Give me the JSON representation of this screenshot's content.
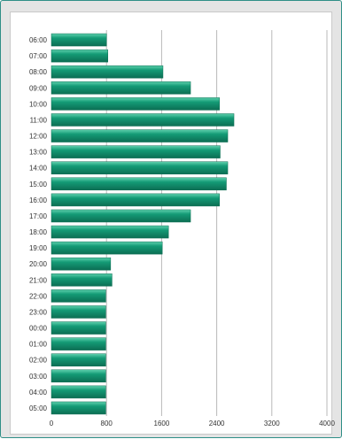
{
  "colors": {
    "bar_fill": "#149b76",
    "bar_highlight": "#5fd1ae",
    "bar_shadow": "#0c6e53",
    "grid": "#b9b9b9",
    "panel_background": "#e4e4e4",
    "frame_border": "#2f8f87"
  },
  "chart_data": {
    "type": "bar",
    "orientation": "horizontal",
    "title": "",
    "xlabel": "",
    "ylabel": "",
    "categories": [
      "06:00",
      "07:00",
      "08:00",
      "09:00",
      "10:00",
      "11:00",
      "12:00",
      "13:00",
      "14:00",
      "15:00",
      "16:00",
      "17:00",
      "18:00",
      "19:00",
      "20:00",
      "21:00",
      "22:00",
      "23:00",
      "00:00",
      "01:00",
      "02:00",
      "03:00",
      "04:00",
      "05:00"
    ],
    "values": [
      800,
      820,
      1620,
      2020,
      2440,
      2650,
      2560,
      2450,
      2560,
      2540,
      2440,
      2020,
      1700,
      1610,
      860,
      880,
      790,
      790,
      790,
      790,
      790,
      790,
      790,
      790
    ],
    "xlim": [
      0,
      4000
    ],
    "xticks": [
      "0",
      "800",
      "1600",
      "2400",
      "3200",
      "4000"
    ],
    "grid": "vertical"
  }
}
